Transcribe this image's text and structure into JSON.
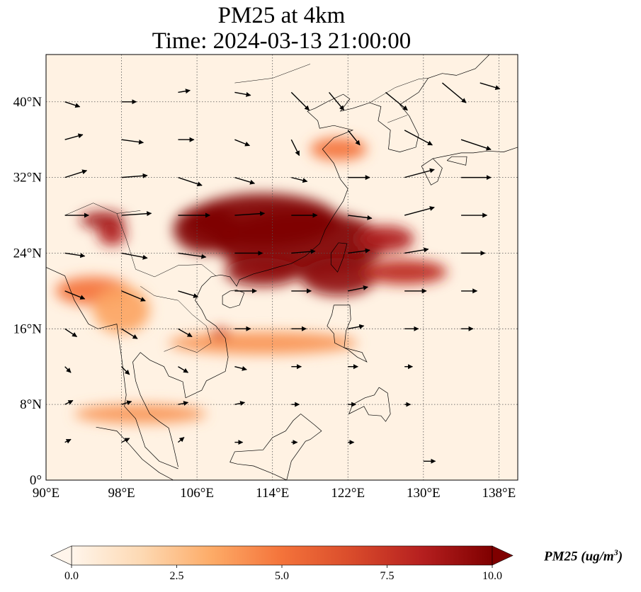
{
  "title_line1": "PM25 at 4km",
  "title_line2": "Time: 2024-03-13 21:00:00",
  "map": {
    "lon_range": [
      90,
      140
    ],
    "lat_range": [
      0,
      45
    ],
    "lon_ticks": [
      {
        "value": 90,
        "label": "90°E"
      },
      {
        "value": 98,
        "label": "98°E"
      },
      {
        "value": 106,
        "label": "106°E"
      },
      {
        "value": 114,
        "label": "114°E"
      },
      {
        "value": 122,
        "label": "122°E"
      },
      {
        "value": 130,
        "label": "130°E"
      },
      {
        "value": 138,
        "label": "138°E"
      }
    ],
    "lat_ticks": [
      {
        "value": 0,
        "label": "0°"
      },
      {
        "value": 8,
        "label": "8°N"
      },
      {
        "value": 16,
        "label": "16°N"
      },
      {
        "value": 24,
        "label": "24°N"
      },
      {
        "value": 32,
        "label": "32°N"
      },
      {
        "value": 40,
        "label": "40°N"
      }
    ],
    "gridlines": true
  },
  "colorbar": {
    "min": 0,
    "max": 10,
    "extend": "both",
    "ticks": [
      {
        "value": 0,
        "label": "0.0"
      },
      {
        "value": 2.5,
        "label": "2.5"
      },
      {
        "value": 5,
        "label": "5.0"
      },
      {
        "value": 7.5,
        "label": "7.5"
      },
      {
        "value": 10,
        "label": "10.0"
      }
    ],
    "colors": [
      "#fff5eb",
      "#fdd9b3",
      "#fdab67",
      "#f4733a",
      "#d94b2b",
      "#b51f1f",
      "#7f0000"
    ],
    "label_main": "PM25 (ug/m",
    "label_sup": "3",
    "label_close": ")"
  },
  "plumes": [
    {
      "lon": 113,
      "lat": 27.5,
      "rlon": 8,
      "rlat": 2.8,
      "value": 10
    },
    {
      "lon": 117,
      "lat": 25,
      "rlon": 9,
      "rlat": 3.5,
      "value": 10
    },
    {
      "lon": 107,
      "lat": 26.5,
      "rlon": 3.5,
      "rlat": 2.5,
      "value": 10
    },
    {
      "lon": 113,
      "lat": 22,
      "rlon": 4,
      "rlat": 1.5,
      "value": 9.5
    },
    {
      "lon": 121,
      "lat": 21.5,
      "rlon": 4,
      "rlat": 2,
      "value": 9.5
    },
    {
      "lon": 128,
      "lat": 22,
      "rlon": 4.5,
      "rlat": 1.3,
      "value": 8
    },
    {
      "lon": 126,
      "lat": 25.5,
      "rlon": 3,
      "rlat": 1.4,
      "value": 8.5
    },
    {
      "lon": 96,
      "lat": 27.5,
      "rlon": 2.4,
      "rlat": 0.9,
      "value": 9
    },
    {
      "lon": 97,
      "lat": 26,
      "rlon": 1.5,
      "rlat": 1.2,
      "value": 8.5
    },
    {
      "lon": 95,
      "lat": 20,
      "rlon": 4,
      "rlat": 1.5,
      "value": 5
    },
    {
      "lon": 121,
      "lat": 35,
      "rlon": 3,
      "rlat": 1.2,
      "value": 5
    },
    {
      "lon": 113,
      "lat": 14.5,
      "rlon": 10,
      "rlat": 1.2,
      "value": 4
    },
    {
      "lon": 100,
      "lat": 7,
      "rlon": 7,
      "rlat": 1,
      "value": 4
    },
    {
      "lon": 108.5,
      "lat": 15.5,
      "rlon": 1,
      "rlat": 0.6,
      "value": 7
    },
    {
      "lon": 98,
      "lat": 18,
      "rlon": 3,
      "rlat": 2.5,
      "value": 3.5
    }
  ],
  "wind_vectors": [
    {
      "lon": 92,
      "lat": 40,
      "u": 1.5,
      "v": -0.5
    },
    {
      "lon": 98,
      "lat": 40,
      "u": 1.5,
      "v": 0
    },
    {
      "lon": 104,
      "lat": 41,
      "u": 1.2,
      "v": 0.2
    },
    {
      "lon": 110,
      "lat": 41,
      "u": 1.6,
      "v": -0.3
    },
    {
      "lon": 116,
      "lat": 41,
      "u": 1.8,
      "v": -1.8
    },
    {
      "lon": 120,
      "lat": 41,
      "u": 1.5,
      "v": -1.8
    },
    {
      "lon": 126,
      "lat": 41,
      "u": 2.2,
      "v": -1.8
    },
    {
      "lon": 132,
      "lat": 42,
      "u": 2.4,
      "v": -2
    },
    {
      "lon": 136,
      "lat": 42,
      "u": 2,
      "v": -0.6
    },
    {
      "lon": 92,
      "lat": 36,
      "u": 1.8,
      "v": 0.5
    },
    {
      "lon": 98,
      "lat": 36,
      "u": 2.2,
      "v": -0.3
    },
    {
      "lon": 104,
      "lat": 36,
      "u": 1.6,
      "v": 0
    },
    {
      "lon": 110,
      "lat": 36,
      "u": 1.5,
      "v": -0.6
    },
    {
      "lon": 116,
      "lat": 36,
      "u": 0.8,
      "v": -1.6
    },
    {
      "lon": 122,
      "lat": 37,
      "u": 1.2,
      "v": -1.5
    },
    {
      "lon": 128,
      "lat": 37,
      "u": 2.8,
      "v": -1.5
    },
    {
      "lon": 134,
      "lat": 36,
      "u": 3,
      "v": -1
    },
    {
      "lon": 92,
      "lat": 32,
      "u": 2.2,
      "v": 0.7
    },
    {
      "lon": 98,
      "lat": 32,
      "u": 2.6,
      "v": 0.2
    },
    {
      "lon": 104,
      "lat": 32,
      "u": 2.4,
      "v": -0.8
    },
    {
      "lon": 110,
      "lat": 32,
      "u": 2,
      "v": -0.6
    },
    {
      "lon": 116,
      "lat": 32,
      "u": 1.6,
      "v": -0.4
    },
    {
      "lon": 122,
      "lat": 32,
      "u": 2.2,
      "v": 0
    },
    {
      "lon": 128,
      "lat": 32,
      "u": 3,
      "v": 0.8
    },
    {
      "lon": 134,
      "lat": 32,
      "u": 3,
      "v": 0
    },
    {
      "lon": 92,
      "lat": 28,
      "u": 2.4,
      "v": 0
    },
    {
      "lon": 98,
      "lat": 28,
      "u": 3,
      "v": 0.2
    },
    {
      "lon": 104,
      "lat": 28,
      "u": 3.2,
      "v": 0
    },
    {
      "lon": 110,
      "lat": 28,
      "u": 3,
      "v": 0.2
    },
    {
      "lon": 116,
      "lat": 28,
      "u": 2.6,
      "v": 0
    },
    {
      "lon": 122,
      "lat": 28,
      "u": 2.4,
      "v": -0.3
    },
    {
      "lon": 128,
      "lat": 28,
      "u": 3,
      "v": 0.8
    },
    {
      "lon": 134,
      "lat": 28,
      "u": 2.6,
      "v": 0
    },
    {
      "lon": 92,
      "lat": 24,
      "u": 2,
      "v": -0.3
    },
    {
      "lon": 98,
      "lat": 24,
      "u": 2.6,
      "v": -0.5
    },
    {
      "lon": 104,
      "lat": 24,
      "u": 2.8,
      "v": -0.4
    },
    {
      "lon": 110,
      "lat": 24,
      "u": 2.8,
      "v": 0
    },
    {
      "lon": 116,
      "lat": 24,
      "u": 2.4,
      "v": 0.2
    },
    {
      "lon": 122,
      "lat": 24,
      "u": 2.2,
      "v": 0.3
    },
    {
      "lon": 128,
      "lat": 24,
      "u": 2.4,
      "v": 0.4
    },
    {
      "lon": 134,
      "lat": 24,
      "u": 2.4,
      "v": 0
    },
    {
      "lon": 92,
      "lat": 20,
      "u": 2,
      "v": -0.8
    },
    {
      "lon": 98,
      "lat": 20,
      "u": 2.4,
      "v": -1
    },
    {
      "lon": 104,
      "lat": 20,
      "u": 2,
      "v": -0.6
    },
    {
      "lon": 110,
      "lat": 20,
      "u": 2.2,
      "v": 0
    },
    {
      "lon": 116,
      "lat": 20,
      "u": 2,
      "v": 0
    },
    {
      "lon": 122,
      "lat": 20,
      "u": 2,
      "v": 0.4
    },
    {
      "lon": 128,
      "lat": 20,
      "u": 2.2,
      "v": 0
    },
    {
      "lon": 134,
      "lat": 20,
      "u": 1.6,
      "v": 0
    },
    {
      "lon": 92,
      "lat": 16,
      "u": 1.2,
      "v": -0.8
    },
    {
      "lon": 98,
      "lat": 16,
      "u": 1.6,
      "v": -1
    },
    {
      "lon": 104,
      "lat": 16,
      "u": 1.4,
      "v": -0.8
    },
    {
      "lon": 110,
      "lat": 16,
      "u": 1.6,
      "v": 0
    },
    {
      "lon": 116,
      "lat": 16,
      "u": 1.5,
      "v": 0
    },
    {
      "lon": 122,
      "lat": 16,
      "u": 1.6,
      "v": 0.3
    },
    {
      "lon": 128,
      "lat": 16,
      "u": 1.4,
      "v": 0
    },
    {
      "lon": 134,
      "lat": 16,
      "u": 1.2,
      "v": 0
    },
    {
      "lon": 92,
      "lat": 12,
      "u": 0.6,
      "v": -0.6
    },
    {
      "lon": 98,
      "lat": 12,
      "u": 0.8,
      "v": -0.8
    },
    {
      "lon": 104,
      "lat": 12,
      "u": 1,
      "v": -0.6
    },
    {
      "lon": 110,
      "lat": 12,
      "u": 1.2,
      "v": -0.3
    },
    {
      "lon": 116,
      "lat": 12,
      "u": 1,
      "v": 0
    },
    {
      "lon": 122,
      "lat": 12,
      "u": 1,
      "v": 0
    },
    {
      "lon": 128,
      "lat": 12,
      "u": 0.8,
      "v": 0
    },
    {
      "lon": 92,
      "lat": 8,
      "u": 0.8,
      "v": 0.4
    },
    {
      "lon": 98,
      "lat": 8,
      "u": 1,
      "v": 0.3
    },
    {
      "lon": 104,
      "lat": 8,
      "u": 1,
      "v": 0.2
    },
    {
      "lon": 110,
      "lat": 8,
      "u": 1,
      "v": 0.2
    },
    {
      "lon": 116,
      "lat": 8,
      "u": 0.8,
      "v": 0
    },
    {
      "lon": 122,
      "lat": 8,
      "u": 0.8,
      "v": 0
    },
    {
      "lon": 128,
      "lat": 8,
      "u": 0.6,
      "v": 0
    },
    {
      "lon": 92,
      "lat": 4,
      "u": 0.6,
      "v": 0.3
    },
    {
      "lon": 98,
      "lat": 4,
      "u": 0.8,
      "v": 0.4
    },
    {
      "lon": 104,
      "lat": 4,
      "u": 0.6,
      "v": 0.5
    },
    {
      "lon": 110,
      "lat": 4,
      "u": 0.8,
      "v": 0
    },
    {
      "lon": 116,
      "lat": 4,
      "u": 0.6,
      "v": 0
    },
    {
      "lon": 122,
      "lat": 4,
      "u": 0.6,
      "v": 0
    },
    {
      "lon": 130,
      "lat": 2,
      "u": 1.2,
      "v": 0
    }
  ],
  "coastlines": [
    [
      [
        90,
        22.5
      ],
      [
        92,
        21.6
      ],
      [
        93,
        19
      ],
      [
        94.5,
        16.5
      ],
      [
        95.5,
        16
      ],
      [
        97.5,
        16.5
      ],
      [
        98,
        13
      ],
      [
        98.5,
        9
      ],
      [
        98.3,
        7.8
      ],
      [
        99.5,
        6.5
      ],
      [
        100.5,
        3.5
      ],
      [
        102,
        2
      ],
      [
        103.5,
        1.4
      ],
      [
        104,
        1.2
      ]
    ],
    [
      [
        104,
        1.4
      ],
      [
        103.4,
        4
      ],
      [
        103,
        5.5
      ],
      [
        102,
        6.2
      ],
      [
        101,
        7
      ],
      [
        100,
        9
      ],
      [
        99.5,
        10.5
      ],
      [
        99.2,
        12.5
      ],
      [
        100,
        13.5
      ],
      [
        101,
        12.7
      ],
      [
        102.5,
        12
      ],
      [
        103,
        11
      ],
      [
        104.5,
        10.4
      ],
      [
        104.8,
        8.7
      ],
      [
        106.5,
        9.5
      ],
      [
        107,
        10.5
      ],
      [
        109,
        11.5
      ],
      [
        109.3,
        13
      ],
      [
        109,
        15
      ],
      [
        108,
        16.3
      ],
      [
        107,
        17
      ],
      [
        106.5,
        18
      ],
      [
        105.8,
        19
      ],
      [
        106.5,
        20.5
      ],
      [
        107.5,
        21.5
      ],
      [
        108.5,
        21.7
      ],
      [
        109.5,
        21.5
      ],
      [
        110.2,
        20.5
      ],
      [
        110.5,
        21.2
      ],
      [
        112,
        21.8
      ],
      [
        113.5,
        22.2
      ],
      [
        114.5,
        22.5
      ],
      [
        116,
        22.9
      ],
      [
        117.5,
        23.7
      ],
      [
        119,
        25
      ],
      [
        119.6,
        26.5
      ],
      [
        120.5,
        28
      ],
      [
        121.5,
        29.5
      ],
      [
        122,
        30.8
      ],
      [
        121.2,
        31.8
      ],
      [
        120.5,
        33.5
      ],
      [
        119.3,
        35
      ],
      [
        120.5,
        36.2
      ],
      [
        122.5,
        37
      ],
      [
        120.5,
        37.5
      ],
      [
        119,
        37.2
      ],
      [
        118.8,
        38
      ],
      [
        117.7,
        39
      ],
      [
        118.5,
        39.3
      ],
      [
        119.8,
        40
      ],
      [
        121.5,
        40.8
      ],
      [
        122.2,
        40.3
      ],
      [
        121.2,
        39
      ],
      [
        122.5,
        39.3
      ],
      [
        124.3,
        39.9
      ],
      [
        125.5,
        39.5
      ],
      [
        125.2,
        38
      ],
      [
        126.5,
        37
      ],
      [
        126.3,
        35
      ],
      [
        127.5,
        34.7
      ],
      [
        129.2,
        35.2
      ],
      [
        129.5,
        36.5
      ],
      [
        128.5,
        38.5
      ],
      [
        127.5,
        39.7
      ],
      [
        129.5,
        41
      ],
      [
        130.5,
        42.5
      ],
      [
        132,
        43
      ],
      [
        133.5,
        42.8
      ],
      [
        135.5,
        43.5
      ],
      [
        137,
        45
      ]
    ],
    [
      [
        110.2,
        20.1
      ],
      [
        111,
        19.8
      ],
      [
        110.5,
        18.5
      ],
      [
        109.5,
        18.2
      ],
      [
        108.7,
        18.6
      ],
      [
        108.7,
        19.5
      ],
      [
        109.5,
        20
      ],
      [
        110.2,
        20.1
      ]
    ],
    [
      [
        121,
        25.1
      ],
      [
        121.9,
        25
      ],
      [
        121.5,
        23.5
      ],
      [
        120.9,
        22
      ],
      [
        120.2,
        22.8
      ],
      [
        120.2,
        24
      ],
      [
        121,
        25.1
      ]
    ],
    [
      [
        120.5,
        18.5
      ],
      [
        122.2,
        18.5
      ],
      [
        122.3,
        17
      ],
      [
        121.8,
        15.8
      ],
      [
        121.6,
        14
      ],
      [
        123.5,
        13.5
      ],
      [
        124,
        12.5
      ],
      [
        123,
        13
      ],
      [
        122,
        13.8
      ],
      [
        120.6,
        14.5
      ],
      [
        120.5,
        15.5
      ],
      [
        119.8,
        16.3
      ],
      [
        120.3,
        17.5
      ],
      [
        120.5,
        18.5
      ]
    ],
    [
      [
        125.3,
        9.8
      ],
      [
        126.2,
        9.2
      ],
      [
        126.5,
        7
      ],
      [
        126,
        6.2
      ],
      [
        125.5,
        6.8
      ],
      [
        124.2,
        6.9
      ],
      [
        123.7,
        7.8
      ],
      [
        122.1,
        7
      ],
      [
        122.5,
        8
      ],
      [
        123.8,
        8.7
      ],
      [
        124.8,
        9
      ],
      [
        125.3,
        9.8
      ]
    ],
    [
      [
        117,
        7
      ],
      [
        118.5,
        5.8
      ],
      [
        119.2,
        5.2
      ],
      [
        118,
        4.3
      ],
      [
        117.5,
        4.1
      ],
      [
        116,
        2
      ],
      [
        115.5,
        0
      ],
      [
        114,
        0.7
      ],
      [
        112,
        1.5
      ],
      [
        110.3,
        1.7
      ],
      [
        109.5,
        1.9
      ],
      [
        110,
        3
      ],
      [
        113,
        3.2
      ],
      [
        114,
        4.5
      ],
      [
        115.4,
        5.2
      ],
      [
        116.2,
        6.3
      ],
      [
        117,
        7
      ]
    ],
    [
      [
        95.3,
        5.6
      ],
      [
        97.5,
        5.2
      ],
      [
        98.8,
        3.8
      ],
      [
        100.2,
        2.2
      ],
      [
        102,
        0.8
      ],
      [
        103.5,
        0
      ]
    ],
    [
      [
        129.8,
        33.2
      ],
      [
        131,
        34
      ],
      [
        132.5,
        34.3
      ],
      [
        134,
        34.6
      ],
      [
        135.3,
        34.6
      ],
      [
        136.8,
        34.8
      ],
      [
        138.5,
        34.7
      ],
      [
        140,
        35.2
      ]
    ],
    [
      [
        129.8,
        33.2
      ],
      [
        130.8,
        31.2
      ],
      [
        131.5,
        31.6
      ],
      [
        132,
        33
      ],
      [
        131,
        34
      ]
    ],
    [
      [
        132.5,
        33.8
      ],
      [
        134.5,
        33.3
      ],
      [
        134.6,
        34.2
      ],
      [
        133,
        34.2
      ],
      [
        132.5,
        33.8
      ]
    ]
  ],
  "borders": [
    [
      [
        92,
        28
      ],
      [
        95,
        29.3
      ],
      [
        97.5,
        28.2
      ],
      [
        98.5,
        25.5
      ],
      [
        99.5,
        22.3
      ],
      [
        101.5,
        21.5
      ],
      [
        104,
        22.7
      ],
      [
        106.5,
        22.8
      ],
      [
        108,
        21.6
      ]
    ],
    [
      [
        100,
        20.5
      ],
      [
        101.5,
        19.5
      ],
      [
        104,
        19
      ],
      [
        105.5,
        17.5
      ],
      [
        107,
        16.3
      ],
      [
        107.5,
        14.5
      ],
      [
        106,
        13.5
      ],
      [
        104,
        14.2
      ],
      [
        102.5,
        13.6
      ]
    ],
    [
      [
        97.5,
        28.2
      ],
      [
        100,
        28.5
      ]
    ],
    [
      [
        110,
        42
      ],
      [
        114,
        42.5
      ],
      [
        118,
        44
      ]
    ],
    [
      [
        124.3,
        39.9
      ],
      [
        127,
        41.5
      ],
      [
        129.5,
        42.4
      ],
      [
        130.5,
        42.5
      ]
    ],
    [
      [
        126.2,
        37.8
      ],
      [
        128.3,
        38.6
      ]
    ]
  ]
}
